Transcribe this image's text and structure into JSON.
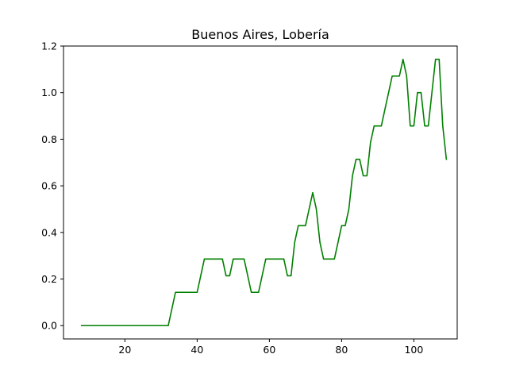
{
  "chart_data": {
    "type": "line",
    "title": "Buenos Aires, Lobería",
    "xlabel": "",
    "ylabel": "",
    "xlim": [
      3,
      112
    ],
    "ylim": [
      -0.0571,
      1.2
    ],
    "xticks": [
      20,
      40,
      60,
      80,
      100
    ],
    "yticks": [
      0.0,
      0.2,
      0.4,
      0.6,
      0.8,
      1.0,
      1.2
    ],
    "grid": false,
    "series": [
      {
        "color": "#008000",
        "x": [
          8,
          32,
          34,
          36,
          38,
          40,
          42,
          44,
          46,
          47,
          48,
          49,
          50,
          51,
          52,
          53,
          55,
          57,
          59,
          60,
          62,
          64,
          65,
          66,
          67,
          68,
          69,
          70,
          71,
          72,
          73,
          74,
          75,
          76,
          77,
          78,
          79,
          80,
          81,
          82,
          83,
          84,
          85,
          86,
          87,
          88,
          89,
          90,
          91,
          92,
          93,
          94,
          95,
          96,
          97,
          98,
          99,
          100,
          101,
          102,
          103,
          104,
          105,
          106,
          107,
          108,
          109
        ],
        "y": [
          0,
          0,
          0.143,
          0.143,
          0.143,
          0.143,
          0.286,
          0.286,
          0.286,
          0.286,
          0.214,
          0.214,
          0.286,
          0.286,
          0.286,
          0.286,
          0.143,
          0.143,
          0.286,
          0.286,
          0.286,
          0.286,
          0.214,
          0.214,
          0.357,
          0.429,
          0.429,
          0.429,
          0.5,
          0.571,
          0.5,
          0.357,
          0.286,
          0.286,
          0.286,
          0.286,
          0.357,
          0.429,
          0.429,
          0.5,
          0.643,
          0.714,
          0.714,
          0.643,
          0.643,
          0.786,
          0.857,
          0.857,
          0.857,
          0.929,
          1.0,
          1.071,
          1.071,
          1.071,
          1.143,
          1.071,
          0.857,
          0.857,
          1.0,
          1.0,
          0.857,
          0.857,
          1.0,
          1.143,
          1.143,
          0.857,
          0.714
        ]
      }
    ]
  }
}
